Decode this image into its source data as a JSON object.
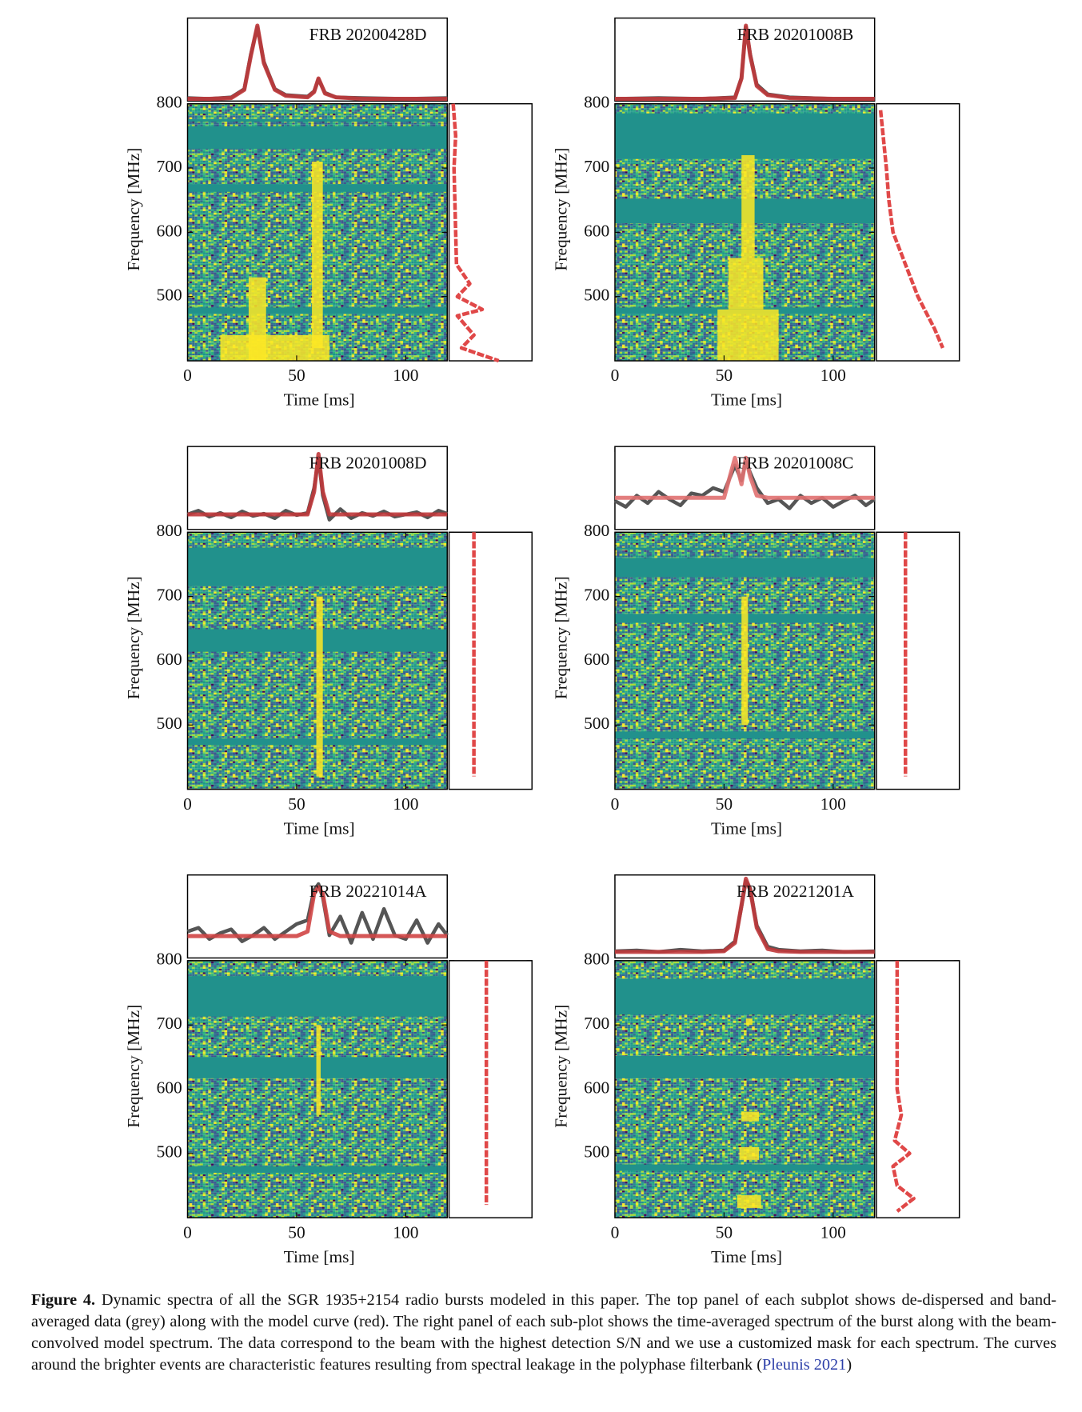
{
  "chart_data": [
    {
      "type": "heatmap",
      "title": "FRB 20200428D",
      "xlabel": "Time [ms]",
      "ylabel": "Frequency [MHz]",
      "xlim": [
        0,
        119
      ],
      "xticks": [
        0,
        50,
        100
      ],
      "ylim": [
        400,
        800
      ],
      "yticks": [
        500,
        600,
        700,
        800
      ],
      "masked_bands": [
        [
          772,
          776
        ],
        [
          730,
          765
        ],
        [
          663,
          675
        ],
        [
          473,
          483
        ]
      ],
      "bursts": [
        {
          "t": [
            28,
            36
          ],
          "f": [
            400,
            530
          ]
        },
        {
          "t": [
            57,
            62
          ],
          "f": [
            420,
            710
          ]
        },
        {
          "t": [
            15,
            65
          ],
          "f": [
            400,
            440
          ]
        }
      ],
      "profile": {
        "ylim": [
          0,
          1.1
        ],
        "x": [
          0,
          10,
          20,
          26,
          29,
          32,
          35,
          40,
          45,
          55,
          58,
          60,
          63,
          68,
          80,
          100,
          119
        ],
        "data": {
          "color": "#555555",
          "values": [
            0.04,
            0.03,
            0.05,
            0.16,
            0.62,
            0.98,
            0.52,
            0.16,
            0.08,
            0.06,
            0.13,
            0.29,
            0.11,
            0.05,
            0.04,
            0.03,
            0.04
          ]
        },
        "model": {
          "color": "#c0393b",
          "values": [
            0.03,
            0.03,
            0.04,
            0.15,
            0.6,
            1.0,
            0.5,
            0.15,
            0.07,
            0.05,
            0.12,
            0.3,
            0.1,
            0.05,
            0.03,
            0.03,
            0.03
          ]
        }
      },
      "spectrum": {
        "xlim": [
          0,
          1
        ],
        "color": "#e04848",
        "freq": [
          800,
          750,
          700,
          650,
          600,
          550,
          520,
          500,
          480,
          470,
          440,
          420,
          400
        ],
        "model": [
          0.05,
          0.08,
          0.06,
          0.07,
          0.08,
          0.09,
          0.25,
          0.1,
          0.4,
          0.1,
          0.3,
          0.15,
          0.6
        ]
      }
    },
    {
      "type": "heatmap",
      "title": "FRB 20201008B",
      "xlabel": "Time [ms]",
      "ylabel": "Frequency [MHz]",
      "xlim": [
        0,
        119
      ],
      "xticks": [
        0,
        50,
        100
      ],
      "ylim": [
        400,
        800
      ],
      "yticks": [
        500,
        600,
        700,
        800
      ],
      "masked_bands": [
        [
          714,
          785
        ],
        [
          614,
          652
        ],
        [
          473,
          483
        ]
      ],
      "bursts": [
        {
          "t": [
            58,
            64
          ],
          "f": [
            560,
            720
          ]
        },
        {
          "t": [
            52,
            68
          ],
          "f": [
            480,
            560
          ]
        },
        {
          "t": [
            47,
            75
          ],
          "f": [
            400,
            480
          ]
        }
      ],
      "profile": {
        "ylim": [
          0,
          1.1
        ],
        "x": [
          0,
          20,
          40,
          55,
          58,
          60,
          62,
          65,
          70,
          80,
          100,
          119
        ],
        "data": {
          "color": "#555555",
          "values": [
            0.03,
            0.04,
            0.03,
            0.05,
            0.31,
            0.98,
            0.62,
            0.22,
            0.09,
            0.05,
            0.03,
            0.03
          ]
        },
        "model": {
          "color": "#c0393b",
          "values": [
            0.03,
            0.03,
            0.03,
            0.04,
            0.3,
            1.0,
            0.6,
            0.2,
            0.08,
            0.04,
            0.03,
            0.03
          ]
        }
      },
      "spectrum": {
        "xlim": [
          0,
          1
        ],
        "color": "#e04848",
        "freq": [
          790,
          700,
          650,
          600,
          550,
          500,
          450,
          420
        ],
        "model": [
          0.05,
          0.12,
          0.15,
          0.2,
          0.35,
          0.5,
          0.7,
          0.8
        ]
      }
    },
    {
      "type": "heatmap",
      "title": "FRB 20201008D",
      "xlabel": "Time [ms]",
      "ylabel": "Frequency [MHz]",
      "xlim": [
        0,
        119
      ],
      "xticks": [
        0,
        50,
        100
      ],
      "ylim": [
        400,
        800
      ],
      "yticks": [
        500,
        600,
        700,
        800
      ],
      "masked_bands": [
        [
          716,
          776
        ],
        [
          614,
          649
        ],
        [
          469,
          479
        ]
      ],
      "bursts": [
        {
          "t": [
            59,
            62
          ],
          "f": [
            420,
            700
          ]
        }
      ],
      "profile": {
        "ylim": [
          0,
          1.1
        ],
        "x": [
          0,
          5,
          10,
          15,
          20,
          25,
          30,
          35,
          40,
          45,
          50,
          55,
          58,
          60,
          62,
          65,
          70,
          75,
          80,
          85,
          90,
          95,
          100,
          105,
          110,
          115,
          119
        ],
        "data": {
          "color": "#555555",
          "values": [
            0.2,
            0.25,
            0.17,
            0.22,
            0.16,
            0.24,
            0.18,
            0.21,
            0.15,
            0.25,
            0.19,
            0.22,
            0.55,
            0.95,
            0.45,
            0.13,
            0.27,
            0.15,
            0.22,
            0.18,
            0.24,
            0.17,
            0.2,
            0.23,
            0.16,
            0.25,
            0.21
          ]
        },
        "model": {
          "color": "#c0393b",
          "values": [
            0.2,
            0.2,
            0.2,
            0.2,
            0.2,
            0.2,
            0.2,
            0.2,
            0.2,
            0.2,
            0.2,
            0.2,
            0.5,
            1.0,
            0.5,
            0.2,
            0.2,
            0.2,
            0.2,
            0.2,
            0.2,
            0.2,
            0.2,
            0.2,
            0.2,
            0.2,
            0.2
          ]
        }
      },
      "spectrum": {
        "xlim": [
          0,
          1
        ],
        "color": "#e04848",
        "freq": [
          800,
          420
        ],
        "model": [
          0.3,
          0.3
        ]
      }
    },
    {
      "type": "heatmap",
      "title": "FRB 20201008C",
      "xlabel": "Time [ms]",
      "ylabel": "Frequency [MHz]",
      "xlim": [
        0,
        119
      ],
      "xticks": [
        0,
        50,
        100
      ],
      "ylim": [
        400,
        800
      ],
      "yticks": [
        500,
        600,
        700,
        800
      ],
      "masked_bands": [
        [
          773,
          776
        ],
        [
          730,
          760
        ],
        [
          659,
          673
        ],
        [
          479,
          490
        ]
      ],
      "bursts": [
        {
          "t": [
            58,
            61
          ],
          "f": [
            500,
            700
          ]
        }
      ],
      "profile": {
        "ylim": [
          0,
          1.1
        ],
        "x": [
          0,
          5,
          10,
          15,
          20,
          25,
          30,
          35,
          40,
          45,
          50,
          55,
          58,
          60,
          62,
          65,
          70,
          75,
          80,
          85,
          90,
          95,
          100,
          105,
          110,
          115,
          119
        ],
        "data": {
          "color": "#555555",
          "values": [
            0.38,
            0.3,
            0.45,
            0.35,
            0.5,
            0.4,
            0.32,
            0.48,
            0.45,
            0.55,
            0.5,
            0.85,
            0.65,
            0.9,
            0.75,
            0.55,
            0.35,
            0.4,
            0.28,
            0.45,
            0.35,
            0.42,
            0.3,
            0.38,
            0.45,
            0.32,
            0.4
          ]
        },
        "model": {
          "color": "#e07070",
          "values": [
            0.42,
            0.42,
            0.42,
            0.42,
            0.42,
            0.42,
            0.42,
            0.42,
            0.42,
            0.42,
            0.42,
            0.95,
            0.6,
            0.95,
            0.7,
            0.45,
            0.42,
            0.42,
            0.42,
            0.42,
            0.42,
            0.42,
            0.42,
            0.42,
            0.42,
            0.42,
            0.42
          ]
        }
      },
      "spectrum": {
        "xlim": [
          0,
          1
        ],
        "color": "#e04848",
        "freq": [
          800,
          420
        ],
        "model": [
          0.35,
          0.35
        ]
      }
    },
    {
      "type": "heatmap",
      "title": "FRB 20221014A",
      "xlabel": "Time [ms]",
      "ylabel": "Frequency [MHz]",
      "xlim": [
        0,
        119
      ],
      "xticks": [
        0,
        50,
        100
      ],
      "ylim": [
        400,
        800
      ],
      "yticks": [
        500,
        600,
        700,
        800
      ],
      "masked_bands": [
        [
          713,
          776
        ],
        [
          617,
          650
        ],
        [
          470,
          480
        ]
      ],
      "bursts": [
        {
          "t": [
            59,
            61
          ],
          "f": [
            560,
            700
          ]
        }
      ],
      "profile": {
        "ylim": [
          0,
          1.1
        ],
        "x": [
          0,
          5,
          10,
          15,
          20,
          25,
          30,
          35,
          40,
          45,
          50,
          55,
          58,
          60,
          62,
          65,
          70,
          75,
          80,
          85,
          90,
          95,
          100,
          105,
          110,
          115,
          119
        ],
        "data": {
          "color": "#555555",
          "values": [
            0.35,
            0.4,
            0.25,
            0.33,
            0.38,
            0.22,
            0.3,
            0.4,
            0.25,
            0.35,
            0.45,
            0.5,
            0.9,
            0.98,
            0.8,
            0.3,
            0.55,
            0.2,
            0.6,
            0.25,
            0.65,
            0.3,
            0.25,
            0.5,
            0.2,
            0.45,
            0.3
          ]
        },
        "model": {
          "color": "#d04545",
          "values": [
            0.29,
            0.29,
            0.29,
            0.29,
            0.29,
            0.29,
            0.29,
            0.29,
            0.29,
            0.29,
            0.29,
            0.35,
            0.85,
            0.94,
            0.85,
            0.35,
            0.29,
            0.29,
            0.29,
            0.29,
            0.29,
            0.29,
            0.29,
            0.29,
            0.29,
            0.29,
            0.29
          ]
        }
      },
      "spectrum": {
        "xlim": [
          0,
          1
        ],
        "color": "#e04848",
        "freq": [
          800,
          420
        ],
        "model": [
          0.45,
          0.45
        ]
      }
    },
    {
      "type": "heatmap",
      "title": "FRB 20221201A",
      "xlabel": "Time [ms]",
      "ylabel": "Frequency [MHz]",
      "xlim": [
        0,
        119
      ],
      "xticks": [
        0,
        50,
        100
      ],
      "ylim": [
        400,
        800
      ],
      "yticks": [
        500,
        600,
        700,
        800
      ],
      "masked_bands": [
        [
          716,
          772
        ],
        [
          617,
          652
        ],
        [
          473,
          483
        ]
      ],
      "bursts": [
        {
          "t": [
            58,
            66
          ],
          "f": [
            550,
            565
          ]
        },
        {
          "t": [
            57,
            66
          ],
          "f": [
            490,
            510
          ]
        },
        {
          "t": [
            56,
            67
          ],
          "f": [
            415,
            435
          ]
        },
        {
          "t": [
            60,
            63
          ],
          "f": [
            700,
            710
          ]
        }
      ],
      "profile": {
        "ylim": [
          0,
          1.1
        ],
        "x": [
          0,
          10,
          20,
          30,
          40,
          50,
          55,
          58,
          60,
          62,
          65,
          70,
          75,
          85,
          95,
          105,
          119
        ],
        "data": {
          "color": "#555555",
          "values": [
            0.09,
            0.1,
            0.08,
            0.11,
            0.09,
            0.1,
            0.22,
            0.68,
            1.02,
            0.92,
            0.43,
            0.15,
            0.11,
            0.09,
            0.1,
            0.08,
            0.09
          ]
        },
        "model": {
          "color": "#c0393b",
          "values": [
            0.08,
            0.08,
            0.08,
            0.08,
            0.08,
            0.09,
            0.2,
            0.7,
            1.05,
            0.9,
            0.4,
            0.12,
            0.09,
            0.08,
            0.08,
            0.08,
            0.08
          ]
        }
      },
      "spectrum": {
        "xlim": [
          0,
          1
        ],
        "color": "#e04848",
        "freq": [
          800,
          700,
          600,
          560,
          520,
          500,
          480,
          450,
          430,
          410
        ],
        "model": [
          0.25,
          0.25,
          0.25,
          0.3,
          0.22,
          0.4,
          0.2,
          0.25,
          0.45,
          0.25
        ]
      }
    }
  ],
  "caption": {
    "label": "Figure 4.",
    "text": "Dynamic spectra of all the SGR 1935+2154 radio bursts modeled in this paper. The top panel of each subplot shows de-dispersed and band-averaged data (grey) along with the model curve (red). The right panel of each sub-plot shows the time-averaged spectrum of the burst along with the beam-convolved model spectrum. The data correspond to the beam with the highest detection S/N and we use a customized mask for each spectrum. The curves around the brighter events are characteristic features resulting from spectral leakage in the polyphase filterbank (",
    "link": "Pleunis 2021",
    "end": ")"
  }
}
